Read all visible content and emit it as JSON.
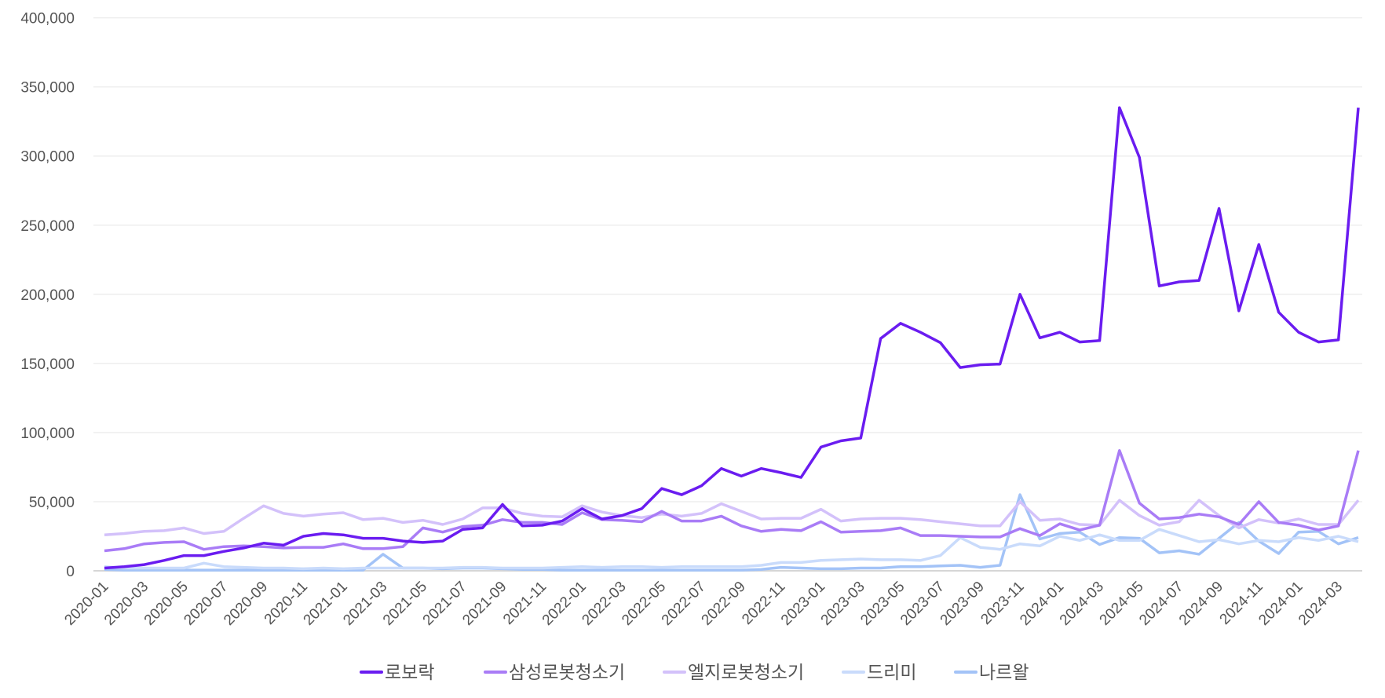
{
  "chart_data": {
    "type": "line",
    "title": "",
    "xlabel": "",
    "ylabel": "",
    "ylim": [
      0,
      400000
    ],
    "y_ticks": [
      0,
      50000,
      100000,
      150000,
      200000,
      250000,
      300000,
      350000,
      400000
    ],
    "y_tick_labels": [
      "0",
      "50,000",
      "100,000",
      "150,000",
      "200,000",
      "250,000",
      "300,000",
      "350,000",
      "400,000"
    ],
    "grid": "horizontal",
    "legend_position": "bottom",
    "x_tick_labels": [
      "2020-01",
      "2020-03",
      "2020-05",
      "2020-07",
      "2020-09",
      "2020-11",
      "2021-01",
      "2021-03",
      "2021-05",
      "2021-07",
      "2021-09",
      "2021-11",
      "2022-01",
      "2022-03",
      "2022-05",
      "2022-07",
      "2022-09",
      "2022-11",
      "2023-01",
      "2023-03",
      "2023-05",
      "2023-07",
      "2023-09",
      "2023-11",
      "2024-01",
      "2024-03",
      "2024-05",
      "2024-07",
      "2024-09",
      "2024-11",
      "2024-01",
      "2024-03"
    ],
    "series": [
      {
        "name": "로보락",
        "color": "#6a1cf0",
        "values": [
          2000,
          3000,
          4500,
          7500,
          11000,
          11000,
          14000,
          16500,
          20000,
          18500,
          25000,
          27000,
          26000,
          23500,
          23500,
          21500,
          20500,
          21500,
          30000,
          31000,
          48000,
          32500,
          33000,
          36000,
          45000,
          37500,
          40000,
          45000,
          59500,
          55000,
          61500,
          74000,
          68500,
          74000,
          71000,
          67500,
          89500,
          94000,
          96000,
          168000,
          179000,
          172500,
          165000,
          147000,
          149000,
          149500,
          200000,
          168500,
          172500,
          165500,
          166500,
          335000,
          299000,
          206000,
          209000,
          210000,
          262000,
          188000,
          236000,
          187000,
          172500,
          165500,
          167000,
          335000
        ]
      },
      {
        "name": "삼성로봇청소기",
        "color": "#a97cf6",
        "values": [
          14500,
          16000,
          19500,
          20500,
          21000,
          15500,
          17500,
          18000,
          17500,
          16500,
          17000,
          17000,
          19500,
          16000,
          16000,
          17500,
          31000,
          28000,
          32000,
          33000,
          37000,
          35000,
          35000,
          33500,
          42000,
          37000,
          36500,
          35500,
          43000,
          36000,
          36000,
          39500,
          32500,
          28500,
          30000,
          29000,
          35500,
          28000,
          28500,
          29000,
          31000,
          25500,
          25500,
          25000,
          24500,
          24500,
          30500,
          25500,
          34000,
          29500,
          33000,
          87000,
          49000,
          37500,
          38500,
          41000,
          39000,
          33500,
          50000,
          35000,
          33000,
          29500,
          32500,
          87000
        ]
      },
      {
        "name": "엘지로봇청소기",
        "color": "#d3c1fa",
        "values": [
          26000,
          27000,
          28500,
          29000,
          31000,
          27000,
          28500,
          38000,
          47000,
          41500,
          39500,
          41000,
          42000,
          37000,
          38000,
          35000,
          36500,
          33500,
          37500,
          45500,
          45500,
          41500,
          39500,
          39000,
          47000,
          42500,
          40000,
          38500,
          41000,
          39500,
          41500,
          48500,
          43000,
          37500,
          38000,
          38000,
          44500,
          36000,
          37500,
          38000,
          38000,
          37000,
          35500,
          34000,
          32500,
          32500,
          50000,
          36500,
          37500,
          33500,
          33000,
          51000,
          40000,
          33000,
          35500,
          51000,
          40000,
          31000,
          37000,
          34500,
          37500,
          33500,
          33500,
          51000
        ]
      },
      {
        "name": "드리미",
        "color": "#c9dbfb",
        "values": [
          3000,
          2000,
          2000,
          2000,
          2000,
          5500,
          3000,
          2500,
          2000,
          2000,
          1500,
          2000,
          1500,
          2000,
          2000,
          2000,
          2000,
          2000,
          2500,
          2500,
          2000,
          2000,
          2000,
          2500,
          3000,
          2500,
          3000,
          3000,
          2500,
          3000,
          3000,
          3000,
          3000,
          4000,
          6000,
          6000,
          7500,
          8000,
          8500,
          8000,
          8000,
          7500,
          11000,
          24000,
          17000,
          15500,
          19500,
          18000,
          25000,
          22000,
          26000,
          22000,
          22000,
          30000,
          25500,
          21000,
          22500,
          19500,
          22000,
          21000,
          24000,
          22000,
          25000,
          21000
        ]
      },
      {
        "name": "나르왈",
        "color": "#a3c3f7",
        "values": [
          1000,
          500,
          500,
          500,
          500,
          500,
          500,
          500,
          500,
          500,
          500,
          500,
          500,
          500,
          12000,
          2000,
          2000,
          1500,
          2000,
          2000,
          1500,
          1000,
          1000,
          500,
          500,
          500,
          500,
          500,
          500,
          500,
          500,
          500,
          500,
          1000,
          2500,
          2000,
          1500,
          1500,
          2000,
          2000,
          3000,
          3000,
          3500,
          4000,
          2500,
          4000,
          55000,
          23000,
          27000,
          28000,
          19000,
          24000,
          23500,
          13000,
          14500,
          12000,
          23500,
          35000,
          21500,
          12500,
          28000,
          28500,
          19500,
          24000
        ]
      }
    ]
  }
}
